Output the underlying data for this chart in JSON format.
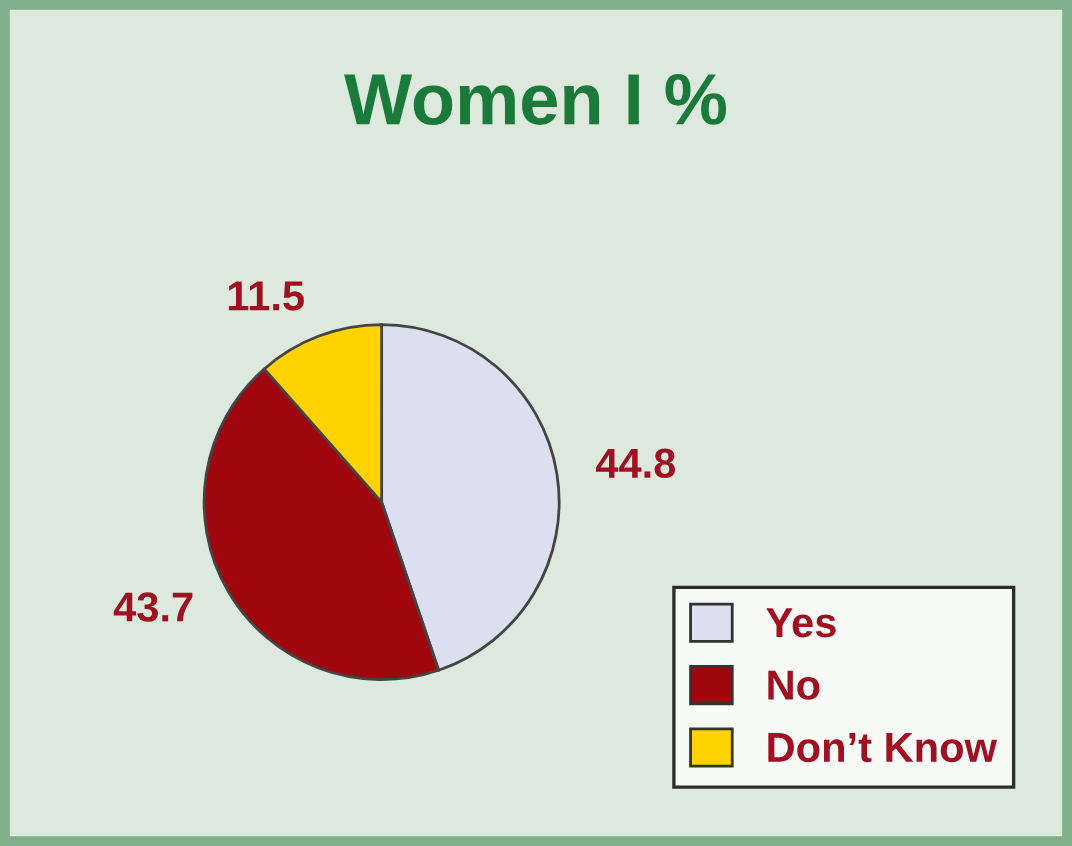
{
  "chart_data": {
    "type": "pie",
    "title": "Women I %",
    "categories": [
      "Yes",
      "No",
      "Don’t Know"
    ],
    "values": [
      44.8,
      43.7,
      11.5
    ],
    "colors": [
      "#dcdff0",
      "#a0060e",
      "#ffd200"
    ],
    "data_labels": true,
    "legend": "bottom right"
  }
}
